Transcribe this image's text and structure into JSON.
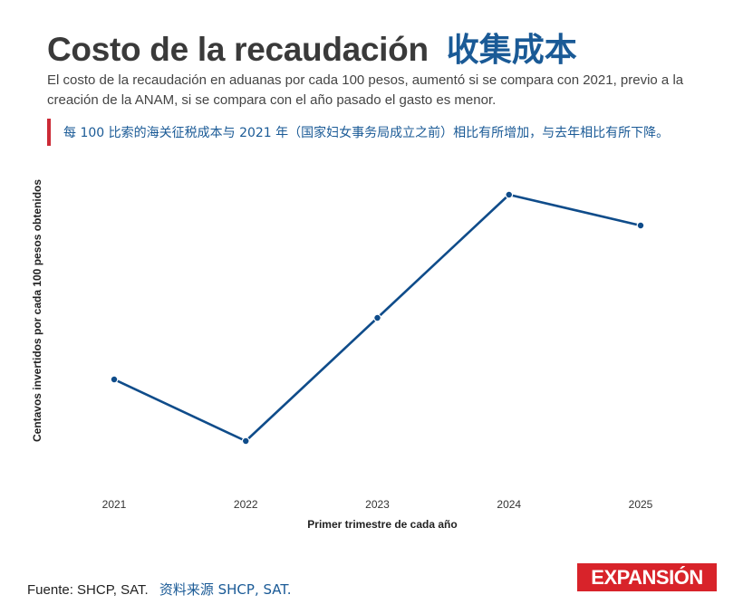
{
  "header": {
    "title_es": "Costo de la recaudación",
    "title_zh": "收集成本",
    "subtitle": "El costo de la recaudación en aduanas por cada 100 pesos, aumentó si se compara con 2021, previo a la creación de la ANAM, si se compara con el año pasado el gasto es menor.",
    "note_zh": "每 100 比索的海关征税成本与 2021 年（国家妇女事务局成立之前）相比有所增加，与去年相比有所下降。"
  },
  "chart_data": {
    "type": "line",
    "title": "Costo de la recaudación",
    "xlabel": "Primer trimestre de cada año",
    "ylabel": "Centavos invertidos por cada 100 pesos obtenidos",
    "x": [
      "2021",
      "2022",
      "2023",
      "2024",
      "2025"
    ],
    "series": [
      {
        "values": [
          0.31,
          0.19,
          0.43,
          0.67,
          0.61
        ]
      }
    ],
    "ylim": [
      0.16,
      0.7
    ],
    "y_ticks_shown": false,
    "grid": false,
    "legend": "none",
    "line_color": "#0f4c8a"
  },
  "footer": {
    "source_es": "Fuente: SHCP, SAT.",
    "source_zh": "资料来源 SHCP, SAT."
  },
  "logo": {
    "text": "EXPANSIÓN",
    "color": "#d8232a"
  }
}
